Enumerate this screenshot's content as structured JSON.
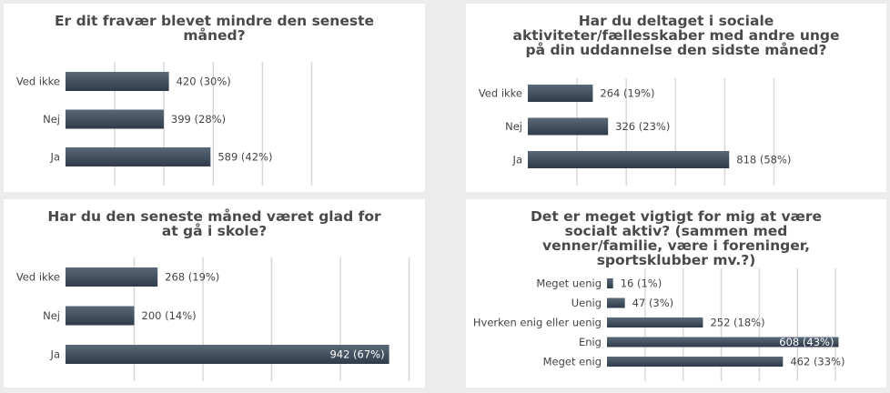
{
  "chart_data": [
    {
      "type": "bar",
      "title": "Er dit fravær blevet mindre den seneste måned?",
      "categories": [
        "Ved ikke",
        "Nej",
        "Ja"
      ],
      "values": [
        420,
        399,
        589
      ],
      "labels": [
        "420 (30%)",
        "399 (28%)",
        "589 (42%)"
      ],
      "xlim": [
        0,
        1000
      ],
      "grid": true
    },
    {
      "type": "bar",
      "title": "Har du deltaget i sociale aktiviteter/fællesskaber med andre unge på din uddannelse den sidste måned?",
      "categories": [
        "Ved ikke",
        "Nej",
        "Ja"
      ],
      "values": [
        264,
        326,
        818
      ],
      "labels": [
        "264 (19%)",
        "326 (23%)",
        "818 (58%)"
      ],
      "xlim": [
        0,
        1000
      ],
      "grid": true
    },
    {
      "type": "bar",
      "title": "Har du den seneste måned været glad for at gå i skole?",
      "categories": [
        "Ved ikke",
        "Nej",
        "Ja"
      ],
      "values": [
        268,
        200,
        942
      ],
      "labels": [
        "268 (19%)",
        "200 (14%)",
        "942 (67%)"
      ],
      "xlim": [
        0,
        1000
      ],
      "grid": true
    },
    {
      "type": "bar",
      "title": "Det er meget vigtigt for mig at være socialt aktiv? (sammen med venner/familie, være i foreninger, sportsklubber mv.?)",
      "categories": [
        "Meget uenig",
        "Uenig",
        "Hverken enig eller uenig",
        "Enig",
        "Meget enig"
      ],
      "values": [
        16,
        47,
        252,
        608,
        462
      ],
      "labels": [
        "16 (1%)",
        "47 (3%)",
        "252 (18%)",
        "608 (43%)",
        "462 (33%)"
      ],
      "xlim": [
        0,
        600
      ],
      "grid": true
    }
  ],
  "colors": {
    "bar_top": "#5a6878",
    "bar_bottom": "#2f3b49",
    "grid": "#d8d8d8"
  }
}
